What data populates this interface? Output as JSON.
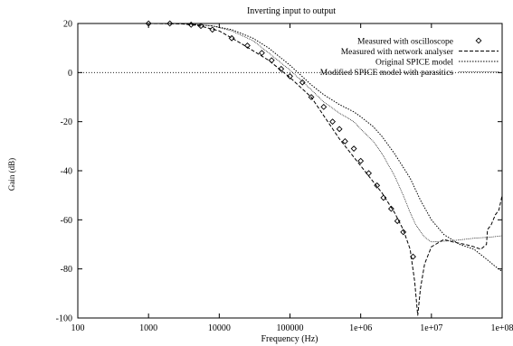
{
  "chart_data": {
    "type": "line",
    "title": "Inverting input to output",
    "xlabel": "Frequency (Hz)",
    "ylabel": "Gain (dB)",
    "x_scale": "log",
    "xlim": [
      100,
      100000000
    ],
    "ylim": [
      -100,
      20
    ],
    "x_ticks": [
      {
        "value": 100,
        "label": "100"
      },
      {
        "value": 1000,
        "label": "1000"
      },
      {
        "value": 10000,
        "label": "10000"
      },
      {
        "value": 100000,
        "label": "100000"
      },
      {
        "value": 1000000,
        "label": "1e+06"
      },
      {
        "value": 10000000,
        "label": "1e+07"
      },
      {
        "value": 100000000,
        "label": "1e+08"
      }
    ],
    "y_ticks": [
      {
        "value": 20,
        "label": "20"
      },
      {
        "value": 0,
        "label": "0"
      },
      {
        "value": -20,
        "label": "-20"
      },
      {
        "value": -40,
        "label": "-40"
      },
      {
        "value": -60,
        "label": "-60"
      },
      {
        "value": -80,
        "label": "-80"
      },
      {
        "value": -100,
        "label": "-100"
      }
    ],
    "grid": false,
    "legend_position": "top-right",
    "reference_line": {
      "y": 0,
      "style": "dotted"
    },
    "series": [
      {
        "name": "Measured with oscilloscope",
        "style": "markers",
        "marker": "diamond",
        "points": [
          [
            1000,
            20
          ],
          [
            2000,
            20
          ],
          [
            4000,
            19.5
          ],
          [
            5500,
            19
          ],
          [
            8000,
            17.5
          ],
          [
            15000,
            14
          ],
          [
            25000,
            11
          ],
          [
            40000,
            8
          ],
          [
            55000,
            5
          ],
          [
            75000,
            1.5
          ],
          [
            100000,
            -1.5
          ],
          [
            150000,
            -4
          ],
          [
            200000,
            -10
          ],
          [
            300000,
            -14
          ],
          [
            400000,
            -20
          ],
          [
            500000,
            -23
          ],
          [
            600000,
            -28
          ],
          [
            800000,
            -31
          ],
          [
            1000000,
            -36
          ],
          [
            1300000,
            -41
          ],
          [
            1700000,
            -46
          ],
          [
            2100000,
            -51
          ],
          [
            2700000,
            -55.5
          ],
          [
            3300000,
            -60.5
          ],
          [
            4000000,
            -65
          ],
          [
            5500000,
            -75
          ]
        ]
      },
      {
        "name": "Measured with network analyser",
        "style": "dashed",
        "points": [
          [
            1000,
            20
          ],
          [
            3000,
            19.8
          ],
          [
            5000,
            19.2
          ],
          [
            10000,
            17
          ],
          [
            20000,
            12
          ],
          [
            50000,
            5
          ],
          [
            100000,
            -2
          ],
          [
            200000,
            -10
          ],
          [
            500000,
            -27
          ],
          [
            1000000,
            -38
          ],
          [
            2000000,
            -49
          ],
          [
            3000000,
            -57
          ],
          [
            4000000,
            -64
          ],
          [
            5000000,
            -72
          ],
          [
            5800000,
            -85
          ],
          [
            6400000,
            -99
          ],
          [
            7000000,
            -88
          ],
          [
            8000000,
            -78
          ],
          [
            10000000,
            -71
          ],
          [
            15000000,
            -68
          ],
          [
            20000000,
            -69
          ],
          [
            30000000,
            -70
          ],
          [
            40000000,
            -71
          ],
          [
            50000000,
            -72
          ],
          [
            60000000,
            -70
          ],
          [
            62000000,
            -64
          ],
          [
            70000000,
            -62
          ],
          [
            80000000,
            -58
          ],
          [
            90000000,
            -56
          ],
          [
            100000000,
            -50
          ]
        ]
      },
      {
        "name": "Original SPICE model",
        "style": "dotted",
        "points": [
          [
            1000,
            20
          ],
          [
            3000,
            20
          ],
          [
            8000,
            19
          ],
          [
            15000,
            17.5
          ],
          [
            30000,
            14
          ],
          [
            50000,
            10
          ],
          [
            100000,
            3
          ],
          [
            200000,
            -5
          ],
          [
            300000,
            -9
          ],
          [
            500000,
            -13
          ],
          [
            800000,
            -16
          ],
          [
            1000000,
            -18
          ],
          [
            1500000,
            -22
          ],
          [
            2000000,
            -26
          ],
          [
            3000000,
            -33
          ],
          [
            5000000,
            -43
          ],
          [
            7000000,
            -52
          ],
          [
            10000000,
            -60
          ],
          [
            15000000,
            -66
          ],
          [
            25000000,
            -70
          ],
          [
            40000000,
            -72
          ],
          [
            60000000,
            -76
          ],
          [
            80000000,
            -79
          ],
          [
            100000000,
            -81
          ]
        ]
      },
      {
        "name": "Modified SPICE model with parasitics",
        "style": "dotted-fine",
        "points": [
          [
            1000,
            20
          ],
          [
            3000,
            20
          ],
          [
            8000,
            19
          ],
          [
            15000,
            17
          ],
          [
            30000,
            13
          ],
          [
            50000,
            8
          ],
          [
            100000,
            1
          ],
          [
            200000,
            -7
          ],
          [
            300000,
            -12
          ],
          [
            500000,
            -16.5
          ],
          [
            800000,
            -20
          ],
          [
            1000000,
            -23
          ],
          [
            1500000,
            -28
          ],
          [
            2000000,
            -33
          ],
          [
            3000000,
            -42
          ],
          [
            4000000,
            -50
          ],
          [
            5000000,
            -57
          ],
          [
            6000000,
            -62
          ],
          [
            8000000,
            -67
          ],
          [
            10000000,
            -69
          ],
          [
            20000000,
            -68.5
          ],
          [
            40000000,
            -67.5
          ],
          [
            70000000,
            -67
          ],
          [
            100000000,
            -66.5
          ]
        ]
      }
    ]
  }
}
